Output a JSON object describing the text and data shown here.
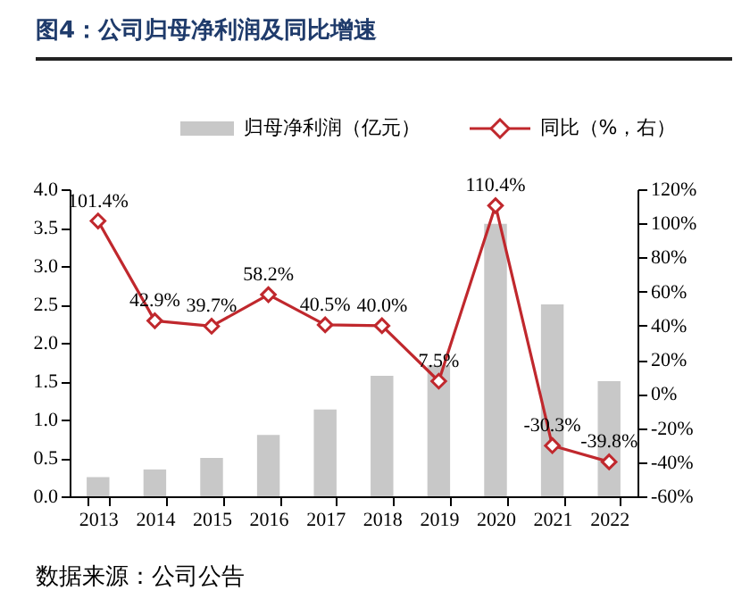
{
  "chart_data": {
    "type": "bar",
    "title": "图4：公司归母净利润及同比增速",
    "categories": [
      "2013",
      "2014",
      "2015",
      "2016",
      "2017",
      "2018",
      "2019",
      "2020",
      "2021",
      "2022"
    ],
    "series": [
      {
        "name": "归母净利润（亿元）",
        "color": "#c8c8c8",
        "values": [
          0.25,
          0.35,
          0.5,
          0.8,
          1.13,
          1.57,
          1.71,
          3.55,
          2.5,
          1.5
        ]
      },
      {
        "name": "同比（%，右）",
        "type": "line",
        "axis": "y2",
        "color": "#c0282d",
        "values": [
          101.4,
          42.9,
          39.7,
          58.2,
          40.5,
          40.0,
          7.5,
          110.4,
          -30.3,
          -39.8
        ],
        "value_labels": [
          "101.4%",
          "42.9%",
          "39.7%",
          "58.2%",
          "40.5%",
          "40.0%",
          "7.5%",
          "110.4%",
          "-30.3%",
          "-39.8%"
        ]
      }
    ],
    "ylim": [
      0,
      4
    ],
    "yticks": [
      {
        "value": 0,
        "label": "0.0"
      },
      {
        "value": 0.5,
        "label": "0.5"
      },
      {
        "value": 1,
        "label": "1.0"
      },
      {
        "value": 1.5,
        "label": "1.5"
      },
      {
        "value": 2,
        "label": "2.0"
      },
      {
        "value": 2.5,
        "label": "2.5"
      },
      {
        "value": 3,
        "label": "3.0"
      },
      {
        "value": 3.5,
        "label": "3.5"
      },
      {
        "value": 4,
        "label": "4.0"
      }
    ],
    "y2lim": [
      -60,
      120
    ],
    "y2ticks": [
      {
        "value": -60,
        "label": "-60%"
      },
      {
        "value": -40,
        "label": "-40%"
      },
      {
        "value": -20,
        "label": "-20%"
      },
      {
        "value": 0,
        "label": "0%"
      },
      {
        "value": 20,
        "label": "20%"
      },
      {
        "value": 40,
        "label": "40%"
      },
      {
        "value": 60,
        "label": "60%"
      },
      {
        "value": 80,
        "label": "80%"
      },
      {
        "value": 100,
        "label": "100%"
      },
      {
        "value": 120,
        "label": "120%"
      }
    ],
    "marker": "diamond",
    "legend": "top",
    "annotations": [
      "数据来源：公司公告"
    ]
  }
}
